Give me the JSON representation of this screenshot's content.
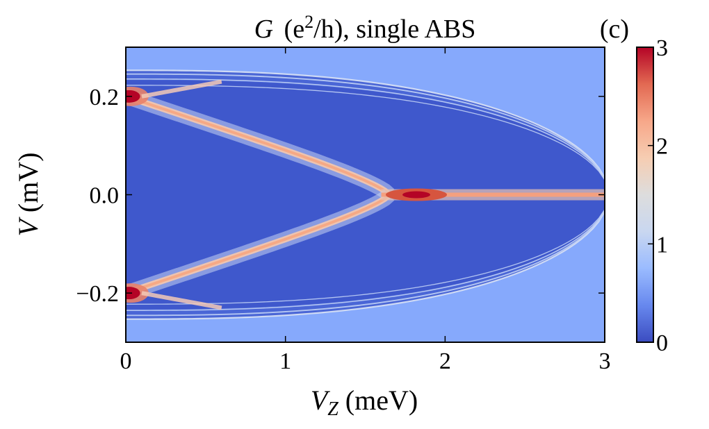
{
  "chart_data": {
    "type": "heatmap",
    "title_main": "G",
    "title_units": "(e",
    "title_sup": "2",
    "title_units_tail": "/h), single ABS",
    "panel_label": "(c)",
    "xlabel_main": "V",
    "xlabel_sub": "Z",
    "xlabel_units": "(meV)",
    "ylabel_main": "V",
    "ylabel_units": "(mV)",
    "xlim": [
      0,
      3
    ],
    "ylim": [
      -0.3,
      0.3
    ],
    "x_ticks": [
      0,
      1,
      2,
      3
    ],
    "x_tick_labels": [
      "0",
      "1",
      "2",
      "3"
    ],
    "y_ticks": [
      -0.2,
      0.0,
      0.2
    ],
    "y_tick_labels": [
      "−0.2",
      "0.0",
      "0.2"
    ],
    "colorbar": {
      "min": 0,
      "max": 3,
      "ticks": [
        0,
        1,
        2,
        3
      ],
      "tick_labels": [
        "0",
        "1",
        "2",
        "3"
      ],
      "colormap": "coolwarm",
      "colors": [
        "#3b4cc0",
        "#6788ee",
        "#9abbff",
        "#c9d7f0",
        "#dddddd",
        "#f6cdb2",
        "#f7a789",
        "#e26952",
        "#b40426"
      ]
    },
    "features": {
      "main_abs_branch": {
        "start_x": 0.0,
        "start_y": 0.2,
        "merge_x": 1.65,
        "zero_peak_x": 1.82,
        "peak_value": 3.0,
        "branch_value": 2.0
      },
      "gap_edge": {
        "y_at_zero": 0.245,
        "x_close": 3.0
      }
    }
  }
}
